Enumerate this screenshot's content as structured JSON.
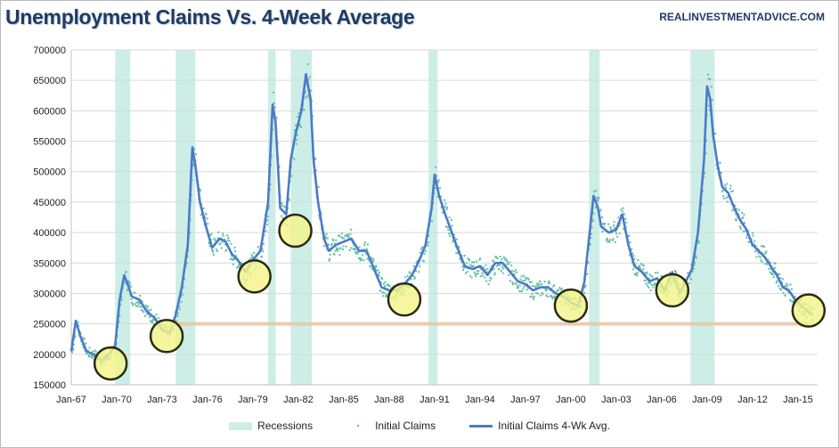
{
  "header": {
    "title": "Unemployment Claims Vs. 4-Week Average",
    "source": "REALINVESTMENTADVICE.COM"
  },
  "colors": {
    "recession": "#cdeee6",
    "claims_dots": "#5fbfa6",
    "avg_line": "#4c7ac9",
    "circle_fill": "#f3f48a",
    "circle_stroke": "#2b2b14",
    "support_line": "#e6c7a6",
    "grid": "#d9d9d9"
  },
  "chart_data": {
    "type": "line",
    "title": "Unemployment Claims Vs. 4-Week Average",
    "xlabel": "",
    "ylabel": "",
    "xlim": [
      1967.0,
      2016.3
    ],
    "ylim": [
      150000,
      700000
    ],
    "grid": true,
    "legend_placement": "bottom",
    "y_ticks": [
      "700000",
      "650000",
      "600000",
      "550000",
      "500000",
      "450000",
      "400000",
      "350000",
      "300000",
      "250000",
      "200000",
      "150000"
    ],
    "y_tick_values": [
      700000,
      650000,
      600000,
      550000,
      500000,
      450000,
      400000,
      350000,
      300000,
      250000,
      200000,
      150000
    ],
    "x_ticks": [
      "Jan-67",
      "Jan-70",
      "Jan-73",
      "Jan-76",
      "Jan-79",
      "Jan-82",
      "Jan-85",
      "Jan-88",
      "Jan-91",
      "Jan-94",
      "Jan-97",
      "Jan-00",
      "Jan-03",
      "Jan-06",
      "Jan-09",
      "Jan-12",
      "Jan-15"
    ],
    "x_tick_values": [
      1967,
      1970,
      1973,
      1976,
      1979,
      1982,
      1985,
      1988,
      1991,
      1994,
      1997,
      2000,
      2003,
      2006,
      2009,
      2012,
      2015
    ],
    "recessions": [
      [
        1969.9,
        1970.9
      ],
      [
        1973.9,
        1975.2
      ],
      [
        1980.0,
        1980.5
      ],
      [
        1981.5,
        1982.9
      ],
      [
        1990.6,
        1991.2
      ],
      [
        2001.2,
        2001.9
      ],
      [
        2007.9,
        2009.5
      ]
    ],
    "series": [
      {
        "name": "Initial Claims 4-Wk Avg.",
        "x": [
          1967.0,
          1967.3,
          1967.6,
          1968.0,
          1968.5,
          1969.0,
          1969.5,
          1969.9,
          1970.2,
          1970.5,
          1970.8,
          1971.0,
          1971.5,
          1972.0,
          1972.5,
          1973.0,
          1973.5,
          1973.9,
          1974.3,
          1974.7,
          1975.0,
          1975.2,
          1975.5,
          1975.9,
          1976.3,
          1976.8,
          1977.2,
          1977.6,
          1978.0,
          1978.5,
          1979.0,
          1979.5,
          1980.0,
          1980.3,
          1980.5,
          1980.8,
          1981.2,
          1981.5,
          1981.8,
          1982.2,
          1982.5,
          1982.8,
          1983.0,
          1983.3,
          1983.7,
          1984.0,
          1984.5,
          1985.0,
          1985.5,
          1986.0,
          1986.5,
          1987.0,
          1987.5,
          1988.0,
          1988.5,
          1989.0,
          1989.5,
          1990.0,
          1990.4,
          1990.8,
          1991.0,
          1991.3,
          1991.7,
          1992.0,
          1992.5,
          1993.0,
          1993.5,
          1994.0,
          1994.5,
          1995.0,
          1995.5,
          1996.0,
          1996.5,
          1997.0,
          1997.5,
          1998.0,
          1998.5,
          1999.0,
          1999.5,
          2000.0,
          2000.5,
          2000.9,
          2001.2,
          2001.5,
          2001.8,
          2002.0,
          2002.5,
          2003.0,
          2003.4,
          2003.8,
          2004.2,
          2004.7,
          2005.2,
          2005.7,
          2006.2,
          2006.7,
          2007.2,
          2007.7,
          2008.0,
          2008.4,
          2008.8,
          2009.0,
          2009.2,
          2009.4,
          2009.7,
          2010.0,
          2010.4,
          2010.8,
          2011.2,
          2011.6,
          2012.0,
          2012.4,
          2012.8,
          2013.2,
          2013.6,
          2014.0,
          2014.4,
          2014.8,
          2015.2,
          2015.7,
          2016.0
        ],
        "values": [
          205000,
          255000,
          230000,
          205000,
          200000,
          190000,
          200000,
          215000,
          290000,
          330000,
          310000,
          295000,
          290000,
          270000,
          260000,
          240000,
          235000,
          265000,
          310000,
          380000,
          540000,
          510000,
          450000,
          410000,
          375000,
          390000,
          385000,
          365000,
          355000,
          335000,
          355000,
          370000,
          450000,
          610000,
          580000,
          440000,
          430000,
          520000,
          560000,
          600000,
          660000,
          620000,
          520000,
          450000,
          390000,
          370000,
          380000,
          385000,
          390000,
          370000,
          370000,
          340000,
          310000,
          305000,
          305000,
          315000,
          330000,
          355000,
          380000,
          440000,
          495000,
          460000,
          430000,
          410000,
          375000,
          345000,
          340000,
          345000,
          330000,
          350000,
          350000,
          335000,
          320000,
          315000,
          305000,
          310000,
          310000,
          300000,
          295000,
          285000,
          280000,
          320000,
          390000,
          460000,
          440000,
          410000,
          400000,
          405000,
          430000,
          380000,
          345000,
          335000,
          320000,
          325000,
          305000,
          335000,
          300000,
          325000,
          340000,
          400000,
          520000,
          640000,
          620000,
          560000,
          510000,
          475000,
          465000,
          440000,
          420000,
          405000,
          380000,
          370000,
          360000,
          345000,
          330000,
          310000,
          305000,
          290000,
          280000,
          270000,
          265000
        ]
      },
      {
        "name": "Initial Claims",
        "x": [],
        "values": []
      }
    ],
    "legend": [
      "Recessions",
      "Initial Claims",
      "Initial Claims 4-Wk Avg."
    ],
    "annotations": {
      "circles": [
        {
          "x": 1969.6,
          "y": 185000
        },
        {
          "x": 1973.3,
          "y": 230000
        },
        {
          "x": 1979.1,
          "y": 328000
        },
        {
          "x": 1981.8,
          "y": 403000
        },
        {
          "x": 1989.0,
          "y": 290000
        },
        {
          "x": 2000.0,
          "y": 280000
        },
        {
          "x": 2006.7,
          "y": 305000
        },
        {
          "x": 2015.7,
          "y": 272000
        }
      ],
      "support_line": {
        "x_start": 1973.6,
        "x_end": 2015.7,
        "y": 250000
      }
    }
  }
}
